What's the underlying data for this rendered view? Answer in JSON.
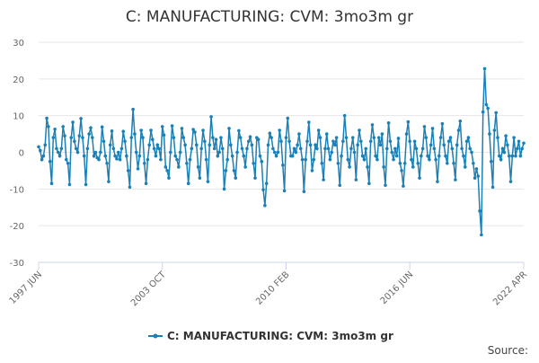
{
  "chart_data": {
    "type": "line",
    "title": "C: MANUFACTURING: CVM: 3mo3m gr",
    "categories": [
      "1997 JUN",
      null,
      null,
      null,
      null,
      null,
      null,
      null,
      null,
      null,
      null,
      null,
      null,
      null,
      null,
      null,
      null,
      null,
      null,
      null,
      null,
      null,
      null,
      null,
      null,
      null,
      null,
      null,
      null,
      null,
      null,
      null,
      null,
      null,
      null,
      null,
      null,
      null,
      null,
      null,
      null,
      null,
      null,
      null,
      null,
      null,
      null,
      null,
      null,
      null,
      null,
      null,
      null,
      null,
      null,
      null,
      null,
      null,
      null,
      null,
      null,
      null,
      null,
      null,
      null,
      null,
      null,
      null,
      null,
      null,
      null,
      null,
      null,
      null,
      null,
      null,
      "2003 OCT",
      null,
      null,
      null,
      null,
      null,
      null,
      null,
      null,
      null,
      null,
      null,
      null,
      null,
      null,
      null,
      null,
      null,
      null,
      null,
      null,
      null,
      null,
      null,
      null,
      null,
      null,
      null,
      null,
      null,
      null,
      null,
      null,
      null,
      null,
      null,
      null,
      null,
      null,
      null,
      null,
      null,
      null,
      null,
      null,
      null,
      null,
      null,
      null,
      null,
      null,
      null,
      null,
      null,
      null,
      null,
      null,
      null,
      null,
      null,
      null,
      null,
      null,
      null,
      null,
      null,
      null,
      null,
      null,
      null,
      null,
      null,
      null,
      null,
      null,
      null,
      "2010 FEB",
      null,
      null,
      null,
      null,
      null,
      null,
      null,
      null,
      null,
      null,
      null,
      null,
      null,
      null,
      null,
      null,
      null,
      null,
      null,
      null,
      null,
      null,
      null,
      null,
      null,
      null,
      null,
      null,
      null,
      null,
      null,
      null,
      null,
      null,
      null,
      null,
      null,
      null,
      null,
      null,
      null,
      null,
      null,
      null,
      null,
      null,
      null,
      null,
      null,
      null,
      null,
      null,
      null,
      null,
      null,
      null,
      null,
      null,
      null,
      null,
      null,
      null,
      null,
      null,
      null,
      null,
      null,
      null,
      null,
      null,
      null,
      null,
      null,
      null,
      null,
      "2016 JUN",
      null,
      null,
      null,
      null,
      null,
      null,
      null,
      null,
      null,
      null,
      null,
      null,
      null,
      null,
      null,
      null,
      null,
      null,
      null,
      null,
      null,
      null,
      null,
      null,
      null,
      null,
      null,
      null,
      null,
      null,
      null,
      null,
      null,
      null,
      null,
      null,
      null,
      null,
      null,
      null,
      null,
      null,
      null,
      null,
      null,
      null,
      null,
      null,
      null,
      null,
      null,
      null,
      null,
      null,
      null,
      null,
      null,
      null,
      null,
      null,
      null,
      null,
      null,
      null,
      null,
      null,
      null,
      null,
      null,
      "2022 APR"
    ],
    "series": [
      {
        "name": "C: MANUFACTURING: CVM: 3mo3m gr",
        "color": "#1a80b6",
        "values": [
          1.5,
          0.5,
          -2,
          -1,
          2,
          9.3,
          7,
          -2.5,
          -8.5,
          4,
          6.3,
          1,
          0,
          -1,
          1,
          7,
          4.5,
          -2,
          -3,
          -8.8,
          4,
          8.2,
          3,
          1,
          0,
          4.5,
          9.2,
          4,
          -1,
          -8.8,
          1,
          5,
          6.7,
          4,
          -1,
          0,
          -1.5,
          -2,
          0,
          6.9,
          3,
          -1,
          -3,
          -8,
          2,
          5.8,
          1,
          -1,
          -1.8,
          0,
          -2,
          1,
          5.7,
          3,
          -1,
          -5,
          -9.5,
          4,
          11.7,
          5,
          0,
          -4.5,
          -1,
          6,
          4,
          -3,
          -8.5,
          -2,
          2,
          6,
          3.5,
          1,
          -1,
          2,
          1,
          -2,
          7,
          4.7,
          -4,
          -5,
          -7,
          0,
          7.2,
          4,
          -1,
          -2,
          -4,
          0,
          6.5,
          4,
          2,
          -3,
          -8.5,
          -2,
          1,
          6.2,
          5.5,
          2,
          -4,
          -7,
          1,
          6,
          3,
          -2,
          -8,
          2,
          9.7,
          4,
          1,
          3.5,
          -1,
          0,
          4,
          1,
          -10,
          -5,
          -2,
          6.5,
          2,
          -1,
          -5,
          -7,
          0,
          5.9,
          4,
          1,
          -1,
          -4,
          1,
          3,
          4.2,
          2,
          -3,
          -7,
          4,
          3.5,
          -1,
          -2.5,
          -10.2,
          -14.5,
          -8.5,
          2,
          5.2,
          4,
          1,
          0,
          -1,
          0,
          6,
          3,
          -3.5,
          -10.5,
          4,
          9.3,
          3,
          -1,
          -1,
          1,
          0,
          2,
          5,
          1,
          -2,
          -10.7,
          -2,
          3,
          8.2,
          2,
          -5,
          -2,
          2,
          1,
          6,
          4,
          -3,
          -7.5,
          1,
          5,
          1,
          -2,
          0,
          3,
          2,
          4,
          -3,
          -9,
          -1,
          3,
          10,
          4,
          -2,
          -4,
          1,
          4,
          0,
          -7.5,
          2,
          6,
          3,
          -1,
          -2,
          1,
          -4,
          -8.5,
          3,
          7.5,
          4,
          -1,
          -2,
          4,
          2,
          5,
          -4,
          -9,
          1,
          8,
          3,
          0,
          -2,
          1,
          -1,
          3.8,
          -3,
          -5,
          -9.2,
          -3,
          5,
          8.3,
          3,
          -2,
          -4,
          3,
          1,
          -3,
          -7,
          -1,
          1,
          7,
          4,
          -1,
          -2,
          2,
          6.5,
          1,
          -2,
          -8,
          -1,
          4,
          7.8,
          2,
          -1,
          -3,
          3,
          4,
          1,
          -3,
          -7.5,
          2,
          6,
          8.5,
          1,
          -1,
          -4,
          3,
          4,
          1,
          0,
          -3,
          -7,
          -4.5,
          -6.5,
          -16,
          -22.5,
          11,
          22.8,
          13,
          12,
          5,
          -2.5,
          -9.5,
          6,
          10.8,
          4,
          -1,
          -2,
          1,
          0,
          4.5,
          2,
          -1,
          -8,
          -1,
          4,
          -1,
          1,
          3,
          -1,
          1,
          2.5
        ]
      }
    ],
    "ylim": [
      -30,
      30
    ],
    "yticks": [
      -30,
      -20,
      -10,
      0,
      10,
      20,
      30
    ],
    "grid": true,
    "legend": "bottom"
  },
  "source": "Source:"
}
